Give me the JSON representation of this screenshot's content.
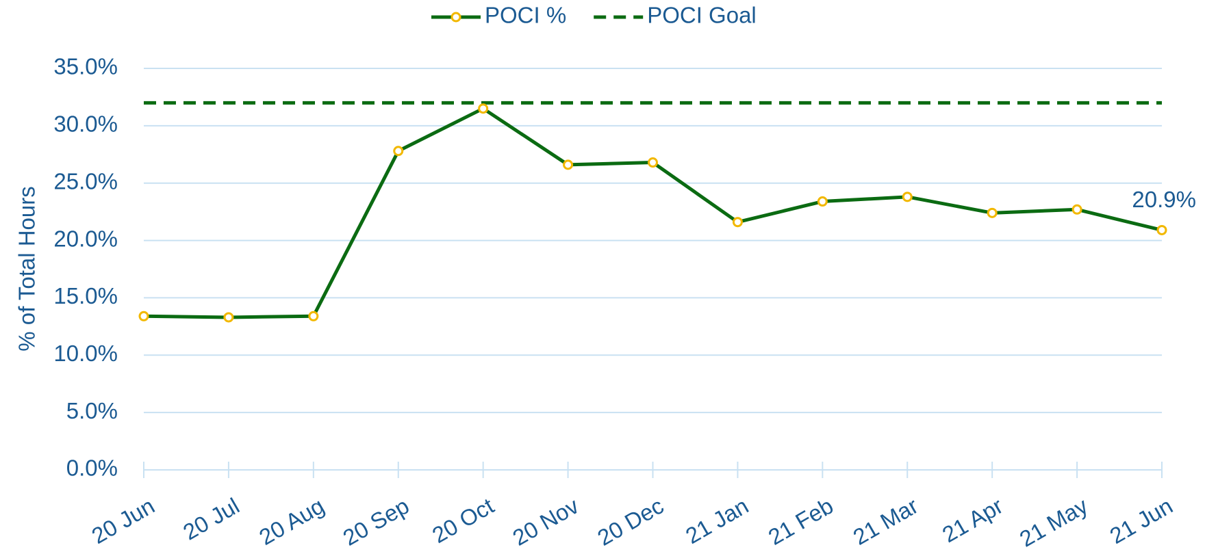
{
  "chart_data": {
    "type": "line",
    "y_label": "% of Total Hours",
    "categories": [
      "20 Jun",
      "20 Jul",
      "20 Aug",
      "20 Sep",
      "20 Oct",
      "20 Nov",
      "20 Dec",
      "21 Jan",
      "21 Feb",
      "21 Mar",
      "21 Apr",
      "21 May",
      "21 Jun"
    ],
    "series": [
      {
        "name": "POCI %",
        "color": "#0b6b12",
        "marker_color": "#f2b800",
        "line_style": "solid",
        "values": [
          13.4,
          13.3,
          13.4,
          27.8,
          31.5,
          26.6,
          26.8,
          21.6,
          23.4,
          23.8,
          22.4,
          22.7,
          20.9
        ],
        "value_labels": [
          null,
          null,
          null,
          null,
          null,
          null,
          null,
          null,
          null,
          null,
          null,
          null,
          "20.9%"
        ]
      },
      {
        "name": "POCI Goal",
        "color": "#0b6b12",
        "line_style": "dashed",
        "values": [
          32,
          32,
          32,
          32,
          32,
          32,
          32,
          32,
          32,
          32,
          32,
          32,
          32
        ]
      }
    ],
    "ylim": [
      0,
      35
    ],
    "yticks": [
      {
        "value": 0,
        "label": "0.0%"
      },
      {
        "value": 5,
        "label": "5.0%"
      },
      {
        "value": 10,
        "label": "10.0%"
      },
      {
        "value": 15,
        "label": "15.0%"
      },
      {
        "value": 20,
        "label": "20.0%"
      },
      {
        "value": 25,
        "label": "25.0%"
      },
      {
        "value": 30,
        "label": "30.0%"
      },
      {
        "value": 35,
        "label": "35.0%"
      }
    ],
    "grid": true,
    "legend": "top"
  }
}
